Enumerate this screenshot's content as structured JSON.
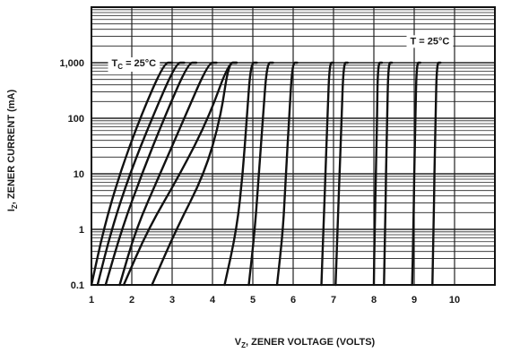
{
  "chart_data": {
    "type": "line",
    "xlabel_main": "V",
    "xlabel_sub": "Z",
    "xlabel_rest": ", ZENER VOLTAGE (VOLTS)",
    "ylabel_main": "I",
    "ylabel_sub": "Z",
    "ylabel_rest": ", ZENER CURRENT (mA)",
    "xlim": [
      1,
      11
    ],
    "ylim": [
      0.1,
      10000
    ],
    "yscale": "log",
    "grid": true,
    "x_ticks": [
      "1",
      "2",
      "3",
      "4",
      "5",
      "6",
      "7",
      "8",
      "9",
      "10"
    ],
    "y_ticks": [
      "0.1",
      "1",
      "10",
      "100",
      "1,000"
    ],
    "annotations": [
      {
        "main": "T",
        "sub": "C",
        "rest": " = 25°C",
        "x": 1.5,
        "y": 1000
      },
      {
        "main": "T = 25°C",
        "sub": "",
        "rest": "",
        "x": 8.9,
        "y": 2500
      }
    ],
    "series": [
      {
        "points": [
          [
            1.0,
            0.1
          ],
          [
            1.3,
            1
          ],
          [
            1.7,
            10
          ],
          [
            2.2,
            100
          ],
          [
            2.8,
            1000
          ],
          [
            3.0,
            1000
          ]
        ]
      },
      {
        "points": [
          [
            1.15,
            0.1
          ],
          [
            1.5,
            1
          ],
          [
            1.95,
            10
          ],
          [
            2.5,
            100
          ],
          [
            3.1,
            1000
          ],
          [
            3.3,
            1000
          ]
        ]
      },
      {
        "points": [
          [
            1.35,
            0.1
          ],
          [
            1.75,
            1
          ],
          [
            2.25,
            10
          ],
          [
            2.8,
            100
          ],
          [
            3.4,
            1000
          ],
          [
            3.6,
            1000
          ]
        ]
      },
      {
        "points": [
          [
            1.7,
            0.1
          ],
          [
            2.1,
            1
          ],
          [
            2.7,
            10
          ],
          [
            3.3,
            100
          ],
          [
            3.9,
            1000
          ],
          [
            4.1,
            1000
          ]
        ]
      },
      {
        "points": [
          [
            1.8,
            0.1
          ],
          [
            2.4,
            1
          ],
          [
            3.2,
            10
          ],
          [
            3.9,
            100
          ],
          [
            4.4,
            1000
          ],
          [
            4.6,
            1000
          ]
        ]
      },
      {
        "points": [
          [
            2.5,
            0.1
          ],
          [
            3.1,
            1
          ],
          [
            3.8,
            10
          ],
          [
            4.2,
            100
          ],
          [
            4.4,
            1000
          ],
          [
            4.6,
            1000
          ]
        ]
      },
      {
        "points": [
          [
            4.3,
            0.1
          ],
          [
            4.6,
            1
          ],
          [
            4.75,
            10
          ],
          [
            4.85,
            100
          ],
          [
            4.95,
            1000
          ],
          [
            5.1,
            1000
          ]
        ]
      },
      {
        "points": [
          [
            4.9,
            0.1
          ],
          [
            5.05,
            1
          ],
          [
            5.15,
            10
          ],
          [
            5.25,
            100
          ],
          [
            5.35,
            1000
          ],
          [
            5.5,
            1000
          ]
        ]
      },
      {
        "points": [
          [
            5.6,
            0.1
          ],
          [
            5.75,
            1
          ],
          [
            5.82,
            10
          ],
          [
            5.9,
            100
          ],
          [
            5.98,
            1000
          ],
          [
            6.1,
            1000
          ]
        ]
      },
      {
        "points": [
          [
            6.7,
            0.1
          ],
          [
            6.75,
            1
          ],
          [
            6.8,
            10
          ],
          [
            6.85,
            100
          ],
          [
            6.9,
            1000
          ],
          [
            7.0,
            1000
          ]
        ]
      },
      {
        "points": [
          [
            7.05,
            0.1
          ],
          [
            7.1,
            1
          ],
          [
            7.15,
            10
          ],
          [
            7.2,
            100
          ],
          [
            7.25,
            1000
          ],
          [
            7.35,
            1000
          ]
        ]
      },
      {
        "points": [
          [
            8.0,
            0.1
          ],
          [
            8.02,
            1
          ],
          [
            8.05,
            10
          ],
          [
            8.08,
            100
          ],
          [
            8.1,
            1000
          ],
          [
            8.2,
            1000
          ]
        ]
      },
      {
        "points": [
          [
            8.25,
            0.1
          ],
          [
            8.28,
            1
          ],
          [
            8.3,
            10
          ],
          [
            8.33,
            100
          ],
          [
            8.36,
            1000
          ],
          [
            8.45,
            1000
          ]
        ]
      },
      {
        "points": [
          [
            8.95,
            0.1
          ],
          [
            8.98,
            1
          ],
          [
            9.0,
            10
          ],
          [
            9.03,
            100
          ],
          [
            9.06,
            1000
          ],
          [
            9.15,
            1000
          ]
        ]
      },
      {
        "points": [
          [
            9.45,
            0.1
          ],
          [
            9.48,
            1
          ],
          [
            9.5,
            10
          ],
          [
            9.53,
            100
          ],
          [
            9.56,
            1000
          ],
          [
            9.65,
            1000
          ]
        ]
      }
    ]
  }
}
